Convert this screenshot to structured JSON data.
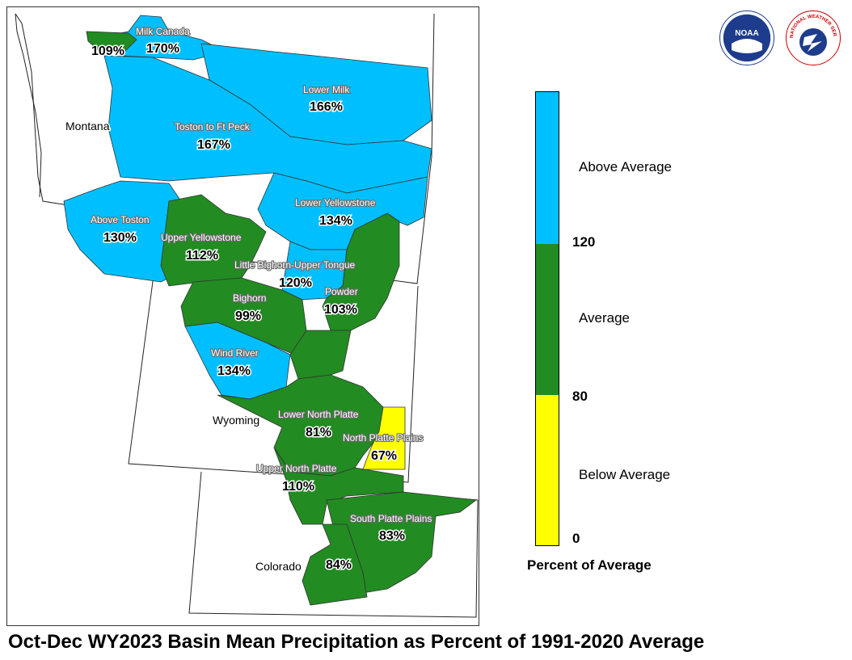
{
  "title": "Oct-Dec WY2023 Basin Mean Precipitation as Percent of 1991-2020 Average",
  "logos": {
    "noaa": "NOAA",
    "nws": "NATIONAL WEATHER SERVICE"
  },
  "colors": {
    "above": "#00BFFF",
    "average": "#228B22",
    "below": "#FFFF00"
  },
  "states": {
    "montana": "Montana",
    "wyoming": "Wyoming",
    "colorado": "Colorado"
  },
  "basins": [
    {
      "name": "",
      "value": "109%"
    },
    {
      "name": "Milk Canada",
      "value": "170%"
    },
    {
      "name": "Lower Milk",
      "value": "166%"
    },
    {
      "name": "Toston to Ft Peck",
      "value": "167%"
    },
    {
      "name": "Above Toston",
      "value": "130%"
    },
    {
      "name": "Lower Yellowstone",
      "value": "134%"
    },
    {
      "name": "Upper Yellowstone",
      "value": "112%"
    },
    {
      "name": "Little Bighorn-Upper Tongue",
      "value": "120%"
    },
    {
      "name": "Bighorn",
      "value": "99%"
    },
    {
      "name": "Powder",
      "value": "103%"
    },
    {
      "name": "Wind River",
      "value": "134%"
    },
    {
      "name": "Lower North Platte",
      "value": "81%"
    },
    {
      "name": "North Platte Plains",
      "value": "67%"
    },
    {
      "name": "Upper North Platte",
      "value": "110%"
    },
    {
      "name": "South Platte Plains",
      "value": "83%"
    },
    {
      "name": "",
      "value": "84%"
    }
  ],
  "legend": {
    "title": "Percent of Average",
    "categories": [
      "Above Average",
      "Average",
      "Below Average"
    ],
    "ticks": [
      "120",
      "80",
      "0"
    ]
  }
}
